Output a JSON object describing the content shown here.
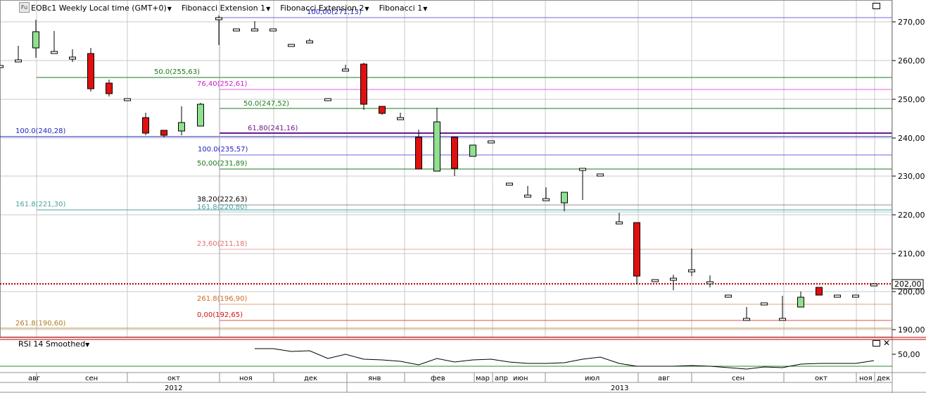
{
  "header": {
    "symbol": "EOBc1",
    "symbol_badge": "Fu",
    "timeframe_label": "Weekly Local time (GMT+0)",
    "studies": [
      "Fibonacci Extension 1",
      "Fibonacci Extension 2",
      "Fibonacci 1"
    ]
  },
  "price_axis": {
    "ticks": [
      "270,00",
      "260,00",
      "250,00",
      "240,00",
      "230,00",
      "220,00",
      "210,00",
      "200,00",
      "190,00"
    ],
    "current_price_label": "202,00"
  },
  "rsi": {
    "title": "RSI 14 Smoothed",
    "tick": "50,00"
  },
  "time_axis": {
    "months": [
      "авг",
      "сен",
      "окт",
      "ноя",
      "дек",
      "янв",
      "фев",
      "мар",
      "апр",
      "июн",
      "июл",
      "авг",
      "сен",
      "окт",
      "ноя",
      "дек"
    ],
    "years": [
      "2012",
      "2013"
    ]
  },
  "fib_labels": [
    {
      "id": "a",
      "text": "100,00(271,13)",
      "color": "#2020c0"
    },
    {
      "id": "b",
      "text": "50.0(255,63)",
      "color": "#1a7a1a"
    },
    {
      "id": "c",
      "text": "76,40(252,61)",
      "color": "#d020d0"
    },
    {
      "id": "d",
      "text": "50.0(247,52)",
      "color": "#1a7a1a"
    },
    {
      "id": "e",
      "text": "100.0(240,28)",
      "color": "#2020c0"
    },
    {
      "id": "f",
      "text": "61,80(241,16)",
      "color": "#6a1a8a"
    },
    {
      "id": "g",
      "text": "100.0(235,57)",
      "color": "#2020c0"
    },
    {
      "id": "h",
      "text": "50,00(231,89)",
      "color": "#1a7a1a"
    },
    {
      "id": "i",
      "text": "38,20(222,63)",
      "color": "#000000"
    },
    {
      "id": "j",
      "text": "161.8(221,30)",
      "color": "#4aa0a0"
    },
    {
      "id": "k",
      "text": "161.8(220,80)",
      "color": "#4aa0a0"
    },
    {
      "id": "l",
      "text": "23,60(211,18)",
      "color": "#e07070"
    },
    {
      "id": "m",
      "text": "261.8(196,90)",
      "color": "#d06a20"
    },
    {
      "id": "n",
      "text": "0,00(192,65)",
      "color": "#d01010"
    },
    {
      "id": "o",
      "text": "261.8(190,60)",
      "color": "#b07a20"
    }
  ],
  "colors": {
    "up_candle": "#90e090",
    "down_candle": "#e01010",
    "grid": "#c8c8c8",
    "current_price_line": "#c00000",
    "rsi_line": "#000000"
  }
}
